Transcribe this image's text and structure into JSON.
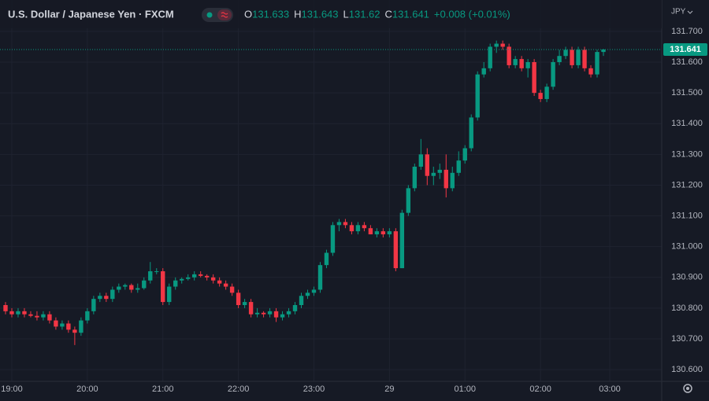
{
  "chart_data": {
    "type": "candlestick",
    "title": "U.S. Dollar / Japanese Yen · FXCM",
    "ohlc_labels": [
      "O",
      "H",
      "L",
      "C"
    ],
    "change": "+0.008 (+0.01%)",
    "currency": "JPY",
    "up_color": "#089981",
    "down_color": "#f23645",
    "categories": [
      null,
      "19:00",
      null,
      null,
      null,
      null,
      null,
      null,
      null,
      null,
      null,
      null,
      null,
      "20:00",
      null,
      null,
      null,
      null,
      null,
      null,
      null,
      null,
      null,
      null,
      null,
      "21:00",
      null,
      null,
      null,
      null,
      null,
      null,
      null,
      null,
      null,
      null,
      null,
      "22:00",
      null,
      null,
      null,
      null,
      null,
      null,
      null,
      null,
      null,
      null,
      null,
      "23:00",
      null,
      null,
      null,
      null,
      null,
      null,
      null,
      null,
      null,
      null,
      null,
      "29",
      null,
      null,
      null,
      null,
      null,
      null,
      null,
      null,
      null,
      null,
      null,
      "01:00",
      null,
      null,
      null,
      null,
      null,
      null,
      null,
      null,
      null,
      null,
      null,
      "02:00",
      null,
      null,
      null,
      null,
      null,
      null,
      null,
      null,
      null,
      null,
      "03:00"
    ],
    "open": [
      130.81,
      130.79,
      130.78,
      130.79,
      130.78,
      130.775,
      130.77,
      130.78,
      130.76,
      130.74,
      130.75,
      130.73,
      130.72,
      130.76,
      130.79,
      130.83,
      130.84,
      130.83,
      130.86,
      130.87,
      130.875,
      130.86,
      130.865,
      130.89,
      130.92,
      130.92,
      130.82,
      130.87,
      130.89,
      130.895,
      130.9,
      130.91,
      130.905,
      130.9,
      130.89,
      130.88,
      130.87,
      130.85,
      130.81,
      130.82,
      130.78,
      130.785,
      130.78,
      130.79,
      130.77,
      130.78,
      130.79,
      130.81,
      130.84,
      130.85,
      130.86,
      130.94,
      130.98,
      131.07,
      131.08,
      131.07,
      131.05,
      131.07,
      131.06,
      131.04,
      131.05,
      131.04,
      131.05,
      130.93,
      131.11,
      131.19,
      131.26,
      131.3,
      131.23,
      131.24,
      131.25,
      131.19,
      131.24,
      131.28,
      131.32,
      131.42,
      131.56,
      131.58,
      131.65,
      131.66,
      131.65,
      131.59,
      131.61,
      131.58,
      131.6,
      131.5,
      131.48,
      131.52,
      131.6,
      131.62,
      131.64,
      131.59,
      131.64,
      131.58,
      131.56,
      131.633,
      null
    ],
    "high": [
      130.82,
      130.8,
      130.8,
      130.8,
      130.79,
      130.79,
      130.79,
      130.79,
      130.77,
      130.76,
      130.76,
      130.74,
      130.77,
      130.8,
      130.84,
      130.85,
      130.85,
      130.87,
      130.88,
      130.88,
      130.88,
      130.88,
      130.9,
      130.95,
      130.93,
      130.93,
      130.88,
      130.9,
      130.9,
      130.91,
      130.92,
      130.92,
      130.91,
      130.91,
      130.9,
      130.89,
      130.88,
      130.86,
      130.83,
      130.83,
      130.8,
      130.79,
      130.8,
      130.8,
      130.79,
      130.8,
      130.82,
      130.85,
      130.86,
      130.87,
      130.95,
      130.99,
      131.08,
      131.09,
      131.09,
      131.08,
      131.08,
      131.08,
      131.07,
      131.06,
      131.06,
      131.06,
      131.06,
      131.12,
      131.2,
      131.27,
      131.35,
      131.32,
      131.26,
      131.27,
      131.3,
      131.26,
      131.31,
      131.33,
      131.43,
      131.57,
      131.6,
      131.66,
      131.67,
      131.67,
      131.66,
      131.62,
      131.62,
      131.61,
      131.61,
      131.51,
      131.53,
      131.61,
      131.64,
      131.65,
      131.65,
      131.65,
      131.65,
      131.59,
      131.64,
      131.643,
      null
    ],
    "low": [
      130.78,
      130.77,
      130.77,
      130.77,
      130.77,
      130.76,
      130.76,
      130.75,
      130.73,
      130.73,
      130.72,
      130.68,
      130.71,
      130.75,
      130.78,
      130.82,
      130.82,
      130.82,
      130.85,
      130.86,
      130.85,
      130.85,
      130.86,
      130.88,
      130.91,
      130.81,
      130.81,
      130.86,
      130.88,
      130.89,
      130.89,
      130.9,
      130.89,
      130.88,
      130.87,
      130.86,
      130.84,
      130.8,
      130.8,
      130.77,
      130.77,
      130.77,
      130.77,
      130.755,
      130.76,
      130.77,
      130.78,
      130.8,
      130.83,
      130.84,
      130.85,
      130.93,
      130.97,
      131.05,
      131.06,
      131.04,
      131.04,
      131.05,
      131.04,
      131.03,
      131.03,
      131.03,
      130.92,
      130.93,
      131.1,
      131.18,
      131.25,
      131.2,
      131.2,
      131.22,
      131.16,
      131.18,
      131.23,
      131.27,
      131.31,
      131.41,
      131.55,
      131.57,
      131.63,
      131.64,
      131.58,
      131.58,
      131.57,
      131.55,
      131.49,
      131.47,
      131.47,
      131.51,
      131.59,
      131.61,
      131.58,
      131.58,
      131.57,
      131.55,
      131.55,
      131.62,
      null
    ],
    "close": [
      130.79,
      130.78,
      130.79,
      130.78,
      130.775,
      130.77,
      130.78,
      130.76,
      130.74,
      130.75,
      130.73,
      130.72,
      130.76,
      130.79,
      130.83,
      130.84,
      130.83,
      130.86,
      130.87,
      130.875,
      130.86,
      130.865,
      130.89,
      130.92,
      130.92,
      130.82,
      130.87,
      130.89,
      130.895,
      130.9,
      130.91,
      130.905,
      130.9,
      130.89,
      130.88,
      130.87,
      130.85,
      130.81,
      130.82,
      130.78,
      130.785,
      130.78,
      130.79,
      130.77,
      130.78,
      130.79,
      130.81,
      130.84,
      130.85,
      130.86,
      130.94,
      130.98,
      131.07,
      131.08,
      131.07,
      131.05,
      131.07,
      131.06,
      131.04,
      131.05,
      131.04,
      131.05,
      130.93,
      131.11,
      131.19,
      131.26,
      131.3,
      131.23,
      131.24,
      131.25,
      131.19,
      131.24,
      131.28,
      131.32,
      131.42,
      131.56,
      131.58,
      131.65,
      131.66,
      131.65,
      131.59,
      131.61,
      131.58,
      131.6,
      131.5,
      131.48,
      131.52,
      131.6,
      131.62,
      131.64,
      131.59,
      131.64,
      131.58,
      131.56,
      131.633,
      131.641,
      null
    ],
    "ylim": [
      130.562,
      131.802
    ],
    "yticks": [
      {
        "value": 130.6,
        "label": "130.600"
      },
      {
        "value": 130.7,
        "label": "130.700"
      },
      {
        "value": 130.8,
        "label": "130.800"
      },
      {
        "value": 130.9,
        "label": "130.900"
      },
      {
        "value": 131.0,
        "label": "131.000"
      },
      {
        "value": 131.1,
        "label": "131.100"
      },
      {
        "value": 131.2,
        "label": "131.200"
      },
      {
        "value": 131.3,
        "label": "131.300"
      },
      {
        "value": 131.4,
        "label": "131.400"
      },
      {
        "value": 131.5,
        "label": "131.500"
      },
      {
        "value": 131.6,
        "label": "131.600"
      },
      {
        "value": 131.7,
        "label": "131.700"
      }
    ],
    "grid": true
  }
}
